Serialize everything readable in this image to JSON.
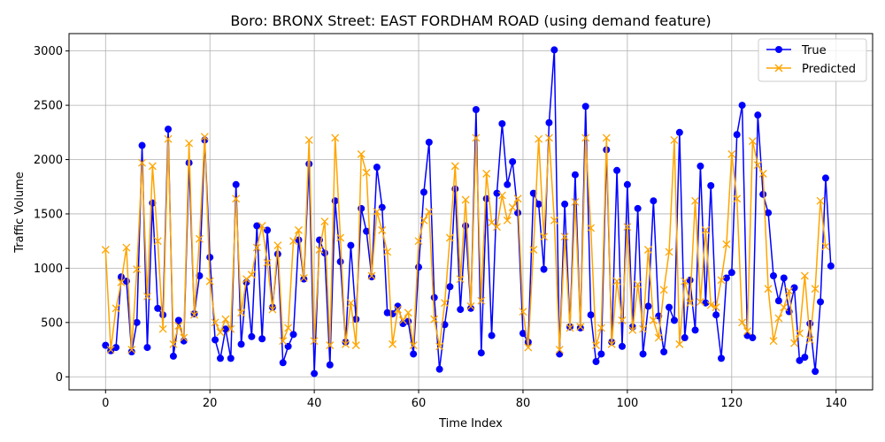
{
  "chart_data": {
    "type": "line",
    "title": "Boro: BRONX Street: EAST FORDHAM ROAD (using demand feature)",
    "xlabel": "Time Index",
    "ylabel": "Traffic Volume",
    "xlim": [
      -7,
      147
    ],
    "ylim": [
      -120,
      3160
    ],
    "xticks": [
      0,
      20,
      40,
      60,
      80,
      100,
      120,
      140
    ],
    "yticks": [
      0,
      500,
      1000,
      1500,
      2000,
      2500,
      3000
    ],
    "grid": true,
    "legend_position": "top-right",
    "series": [
      {
        "name": "True",
        "color": "#0000ff",
        "marker": "circle",
        "values": [
          290,
          240,
          270,
          920,
          880,
          230,
          500,
          2130,
          270,
          1600,
          630,
          570,
          2280,
          190,
          520,
          330,
          1970,
          580,
          930,
          2180,
          1100,
          340,
          170,
          440,
          170,
          1770,
          300,
          870,
          370,
          1390,
          350,
          1350,
          640,
          1130,
          130,
          280,
          390,
          1260,
          900,
          1960,
          30,
          1260,
          1140,
          110,
          1620,
          1060,
          320,
          1210,
          530,
          1550,
          1340,
          920,
          1930,
          1560,
          590,
          580,
          650,
          490,
          510,
          210,
          1010,
          1700,
          2160,
          730,
          70,
          480,
          830,
          1730,
          620,
          1390,
          630,
          2460,
          220,
          1640,
          380,
          1690,
          2330,
          1770,
          1980,
          1510,
          400,
          320,
          1690,
          1590,
          990,
          2340,
          3010,
          210,
          1590,
          460,
          1860,
          450,
          2490,
          570,
          140,
          210,
          2090,
          320,
          1900,
          280,
          1770,
          460,
          1550,
          210,
          650,
          1620,
          560,
          230,
          640,
          520,
          2250,
          360,
          890,
          430,
          1940,
          680,
          1760,
          570,
          170,
          910,
          960,
          2230,
          2500,
          380,
          360,
          2410,
          1680,
          1510,
          930,
          700,
          910,
          600,
          820,
          150,
          180,
          490,
          50,
          690,
          1830,
          1020
        ]
      },
      {
        "name": "Predicted",
        "color": "#ffa500",
        "marker": "x",
        "values": [
          1170,
          250,
          630,
          870,
          1190,
          250,
          990,
          1970,
          740,
          1940,
          1250,
          440,
          2190,
          300,
          470,
          360,
          2150,
          570,
          1270,
          2210,
          880,
          500,
          410,
          530,
          440,
          1640,
          590,
          900,
          940,
          1190,
          1390,
          1050,
          620,
          1210,
          330,
          450,
          1250,
          1350,
          910,
          2180,
          330,
          1170,
          1430,
          290,
          2200,
          1280,
          300,
          680,
          290,
          2050,
          1880,
          930,
          1520,
          1350,
          1150,
          300,
          620,
          520,
          590,
          290,
          1250,
          1440,
          1520,
          530,
          280,
          680,
          1280,
          1940,
          900,
          1630,
          650,
          2200,
          700,
          1870,
          1420,
          1380,
          1670,
          1440,
          1560,
          1640,
          600,
          270,
          1170,
          2190,
          1290,
          2200,
          1440,
          250,
          1290,
          450,
          1610,
          460,
          2200,
          1370,
          290,
          450,
          2200,
          300,
          880,
          520,
          1380,
          430,
          850,
          440,
          1170,
          520,
          360,
          800,
          1150,
          2180,
          300,
          880,
          680,
          1620,
          690,
          1350,
          660,
          640,
          890,
          1220,
          2050,
          1640,
          500,
          420,
          2170,
          1950,
          1870,
          810,
          330,
          540,
          640,
          790,
          310,
          400,
          930,
          340,
          810,
          1620,
          1200
        ]
      }
    ]
  }
}
